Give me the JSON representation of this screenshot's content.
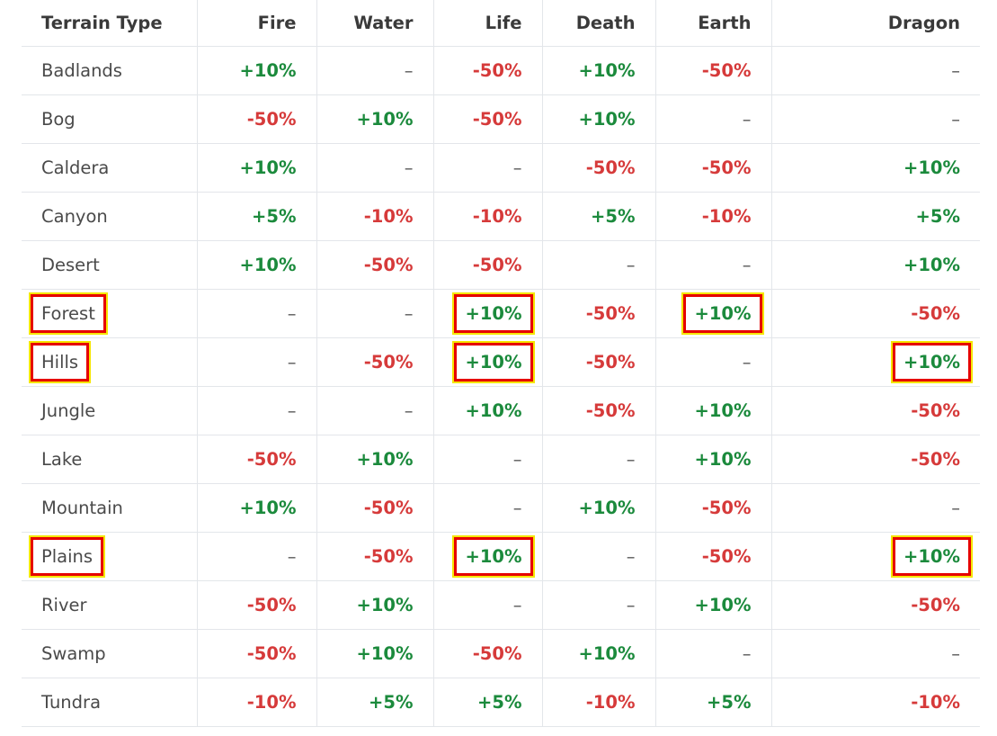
{
  "table": {
    "headers": [
      "Terrain Type",
      "Fire",
      "Water",
      "Life",
      "Death",
      "Earth",
      "Dragon"
    ],
    "rows": [
      {
        "name": "Badlands",
        "values": [
          "+10%",
          "–",
          "-50%",
          "+10%",
          "-50%",
          "–"
        ],
        "name_highlighted": false,
        "highlight": [
          false,
          false,
          false,
          false,
          false,
          false
        ]
      },
      {
        "name": "Bog",
        "values": [
          "-50%",
          "+10%",
          "-50%",
          "+10%",
          "–",
          "–"
        ],
        "name_highlighted": false,
        "highlight": [
          false,
          false,
          false,
          false,
          false,
          false
        ]
      },
      {
        "name": "Caldera",
        "values": [
          "+10%",
          "–",
          "–",
          "-50%",
          "-50%",
          "+10%"
        ],
        "name_highlighted": false,
        "highlight": [
          false,
          false,
          false,
          false,
          false,
          false
        ]
      },
      {
        "name": "Canyon",
        "values": [
          "+5%",
          "-10%",
          "-10%",
          "+5%",
          "-10%",
          "+5%"
        ],
        "name_highlighted": false,
        "highlight": [
          false,
          false,
          false,
          false,
          false,
          false
        ]
      },
      {
        "name": "Desert",
        "values": [
          "+10%",
          "-50%",
          "-50%",
          "–",
          "–",
          "+10%"
        ],
        "name_highlighted": false,
        "highlight": [
          false,
          false,
          false,
          false,
          false,
          false
        ]
      },
      {
        "name": "Forest",
        "values": [
          "–",
          "–",
          "+10%",
          "-50%",
          "+10%",
          "-50%"
        ],
        "name_highlighted": true,
        "highlight": [
          false,
          false,
          true,
          false,
          true,
          false
        ]
      },
      {
        "name": "Hills",
        "values": [
          "–",
          "-50%",
          "+10%",
          "-50%",
          "–",
          "+10%"
        ],
        "name_highlighted": true,
        "highlight": [
          false,
          false,
          true,
          false,
          false,
          true
        ]
      },
      {
        "name": "Jungle",
        "values": [
          "–",
          "–",
          "+10%",
          "-50%",
          "+10%",
          "-50%"
        ],
        "name_highlighted": false,
        "highlight": [
          false,
          false,
          false,
          false,
          false,
          false
        ]
      },
      {
        "name": "Lake",
        "values": [
          "-50%",
          "+10%",
          "–",
          "–",
          "+10%",
          "-50%"
        ],
        "name_highlighted": false,
        "highlight": [
          false,
          false,
          false,
          false,
          false,
          false
        ]
      },
      {
        "name": "Mountain",
        "values": [
          "+10%",
          "-50%",
          "–",
          "+10%",
          "-50%",
          "–"
        ],
        "name_highlighted": false,
        "highlight": [
          false,
          false,
          false,
          false,
          false,
          false
        ]
      },
      {
        "name": "Plains",
        "values": [
          "–",
          "-50%",
          "+10%",
          "–",
          "-50%",
          "+10%"
        ],
        "name_highlighted": true,
        "highlight": [
          false,
          false,
          true,
          false,
          false,
          true
        ]
      },
      {
        "name": "River",
        "values": [
          "-50%",
          "+10%",
          "–",
          "–",
          "+10%",
          "-50%"
        ],
        "name_highlighted": false,
        "highlight": [
          false,
          false,
          false,
          false,
          false,
          false
        ]
      },
      {
        "name": "Swamp",
        "values": [
          "-50%",
          "+10%",
          "-50%",
          "+10%",
          "–",
          "–"
        ],
        "name_highlighted": false,
        "highlight": [
          false,
          false,
          false,
          false,
          false,
          false
        ]
      },
      {
        "name": "Tundra",
        "values": [
          "-10%",
          "+5%",
          "+5%",
          "-10%",
          "+5%",
          "-10%"
        ],
        "name_highlighted": false,
        "highlight": [
          false,
          false,
          false,
          false,
          false,
          false
        ]
      }
    ]
  },
  "colors": {
    "positive": "#1b8a3c",
    "negative": "#d63a3a",
    "neutral": "#5a5a5a",
    "highlight_border": "#e60000",
    "highlight_outline": "#f5e600",
    "grid": "#e3e6ea"
  }
}
